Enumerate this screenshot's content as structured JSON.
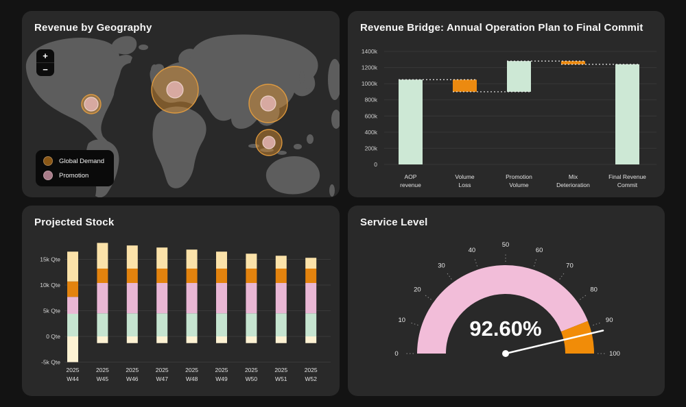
{
  "chart_data": [
    {
      "type": "map",
      "subtype": "bubble-map",
      "title": "Revenue by Geography",
      "zoom_in_label": "+",
      "zoom_out_label": "−",
      "legend": [
        {
          "label": "Global Demand",
          "color": "#8a5716"
        },
        {
          "label": "Promotion",
          "color": "#a87c89"
        }
      ],
      "bubble_colors": {
        "outer_fill": "rgba(224,146,48,0.45)",
        "outer_stroke": "rgba(233,160,62,0.9)",
        "inner_fill": "rgba(218,172,166,0.95)",
        "inner_stroke": "rgba(240,214,206,0.9)"
      },
      "bubbles": [
        {
          "region": "north-america",
          "x": 101,
          "y": 136,
          "outer_r": 14,
          "inner_r": 10
        },
        {
          "region": "europe",
          "x": 223,
          "y": 115,
          "outer_r": 34,
          "inner_r": 12
        },
        {
          "region": "east-asia",
          "x": 359,
          "y": 135,
          "outer_r": 28,
          "inner_r": 11
        },
        {
          "region": "southeast-asia",
          "x": 360,
          "y": 192,
          "outer_r": 19,
          "inner_r": 9
        }
      ]
    },
    {
      "type": "bar",
      "subtype": "waterfall",
      "title": "Revenue Bridge: Annual Operation Plan to Final Commit",
      "ylim": [
        0,
        1400000
      ],
      "yticks": [
        {
          "value": 0,
          "label": "0"
        },
        {
          "value": 200000,
          "label": "200k"
        },
        {
          "value": 400000,
          "label": "400k"
        },
        {
          "value": 600000,
          "label": "600k"
        },
        {
          "value": 800000,
          "label": "800k"
        },
        {
          "value": 1000000,
          "label": "1000k"
        },
        {
          "value": 1200000,
          "label": "1200k"
        },
        {
          "value": 1400000,
          "label": "1400k"
        }
      ],
      "bars": [
        {
          "label": [
            "AOP",
            "revenue"
          ],
          "start": 0,
          "end": 1050000,
          "kind": "total"
        },
        {
          "label": [
            "Volume",
            "Loss"
          ],
          "start": 1050000,
          "end": 900000,
          "kind": "decrease"
        },
        {
          "label": [
            "Promotion",
            "Volume"
          ],
          "start": 900000,
          "end": 1280000,
          "kind": "increase"
        },
        {
          "label": [
            "Mix",
            "Deterioration"
          ],
          "start": 1280000,
          "end": 1240000,
          "kind": "decrease"
        },
        {
          "label": [
            "Final Revenue",
            "Commit"
          ],
          "start": 0,
          "end": 1240000,
          "kind": "total"
        }
      ],
      "colors": {
        "total": "#cde8d5",
        "increase": "#cde8d5",
        "decrease": "#ec8a10"
      },
      "connector_color": "#ededed",
      "grid_color": "#383838"
    },
    {
      "type": "bar",
      "subtype": "stacked",
      "title": "Projected Stock",
      "ylim": [
        -6500,
        19500
      ],
      "yticks": [
        {
          "value": 15000,
          "label": "15k Qte"
        },
        {
          "value": 10000,
          "label": "10k Qte"
        },
        {
          "value": 5000,
          "label": "5k Qte"
        },
        {
          "value": 0,
          "label": "0 Qte"
        },
        {
          "value": -5000,
          "label": "-5k Qte"
        }
      ],
      "segment_colors": {
        "cream": "#fdf2d3",
        "mint": "#c6e4d0",
        "pink": "#e9b7d4",
        "orange": "#e3830e",
        "peach": "#fbe2a9"
      },
      "grid_color": "#3a3a3a",
      "bars": [
        {
          "label": [
            "2025",
            "W44"
          ],
          "segments": [
            {
              "from": -5000,
              "to": 0,
              "color": "cream"
            },
            {
              "from": 0,
              "to": 4400,
              "color": "mint"
            },
            {
              "from": 4400,
              "to": 7700,
              "color": "pink"
            },
            {
              "from": 7700,
              "to": 10700,
              "color": "orange"
            },
            {
              "from": 10700,
              "to": 16500,
              "color": "peach"
            }
          ]
        },
        {
          "label": [
            "2025",
            "W45"
          ],
          "segments": [
            {
              "from": -1300,
              "to": 0,
              "color": "cream"
            },
            {
              "from": 0,
              "to": 4500,
              "color": "mint"
            },
            {
              "from": 4500,
              "to": 10400,
              "color": "pink"
            },
            {
              "from": 10400,
              "to": 13200,
              "color": "orange"
            },
            {
              "from": 13200,
              "to": 18200,
              "color": "peach"
            }
          ]
        },
        {
          "label": [
            "2025",
            "W46"
          ],
          "segments": [
            {
              "from": -1300,
              "to": 0,
              "color": "cream"
            },
            {
              "from": 0,
              "to": 4500,
              "color": "mint"
            },
            {
              "from": 4500,
              "to": 10400,
              "color": "pink"
            },
            {
              "from": 10400,
              "to": 13200,
              "color": "orange"
            },
            {
              "from": 13200,
              "to": 17700,
              "color": "peach"
            }
          ]
        },
        {
          "label": [
            "2025",
            "W47"
          ],
          "segments": [
            {
              "from": -1300,
              "to": 0,
              "color": "cream"
            },
            {
              "from": 0,
              "to": 4500,
              "color": "mint"
            },
            {
              "from": 4500,
              "to": 10400,
              "color": "pink"
            },
            {
              "from": 10400,
              "to": 13200,
              "color": "orange"
            },
            {
              "from": 13200,
              "to": 17300,
              "color": "peach"
            }
          ]
        },
        {
          "label": [
            "2025",
            "W48"
          ],
          "segments": [
            {
              "from": -1300,
              "to": 0,
              "color": "cream"
            },
            {
              "from": 0,
              "to": 4500,
              "color": "mint"
            },
            {
              "from": 4500,
              "to": 10400,
              "color": "pink"
            },
            {
              "from": 10400,
              "to": 13200,
              "color": "orange"
            },
            {
              "from": 13200,
              "to": 16900,
              "color": "peach"
            }
          ]
        },
        {
          "label": [
            "2025",
            "W49"
          ],
          "segments": [
            {
              "from": -1300,
              "to": 0,
              "color": "cream"
            },
            {
              "from": 0,
              "to": 4500,
              "color": "mint"
            },
            {
              "from": 4500,
              "to": 10400,
              "color": "pink"
            },
            {
              "from": 10400,
              "to": 13200,
              "color": "orange"
            },
            {
              "from": 13200,
              "to": 16500,
              "color": "peach"
            }
          ]
        },
        {
          "label": [
            "2025",
            "W50"
          ],
          "segments": [
            {
              "from": -1300,
              "to": 0,
              "color": "cream"
            },
            {
              "from": 0,
              "to": 4500,
              "color": "mint"
            },
            {
              "from": 4500,
              "to": 10400,
              "color": "pink"
            },
            {
              "from": 10400,
              "to": 13200,
              "color": "orange"
            },
            {
              "from": 13200,
              "to": 16100,
              "color": "peach"
            }
          ]
        },
        {
          "label": [
            "2025",
            "W51"
          ],
          "segments": [
            {
              "from": -1300,
              "to": 0,
              "color": "cream"
            },
            {
              "from": 0,
              "to": 4500,
              "color": "mint"
            },
            {
              "from": 4500,
              "to": 10400,
              "color": "pink"
            },
            {
              "from": 10400,
              "to": 13200,
              "color": "orange"
            },
            {
              "from": 13200,
              "to": 15700,
              "color": "peach"
            }
          ]
        },
        {
          "label": [
            "2025",
            "W52"
          ],
          "segments": [
            {
              "from": -1300,
              "to": 0,
              "color": "cream"
            },
            {
              "from": 0,
              "to": 4500,
              "color": "mint"
            },
            {
              "from": 4500,
              "to": 10400,
              "color": "pink"
            },
            {
              "from": 10400,
              "to": 13200,
              "color": "orange"
            },
            {
              "from": 13200,
              "to": 15300,
              "color": "peach"
            }
          ]
        }
      ]
    },
    {
      "type": "gauge",
      "title": "Service Level",
      "min": 0,
      "max": 100,
      "value": 92.6,
      "display_value": "92.60%",
      "tick_step": 10,
      "zones": [
        {
          "from": 0,
          "to": 88,
          "color": "#f2bdd9"
        },
        {
          "from": 88,
          "to": 100,
          "color": "#f18c08"
        }
      ],
      "needle_color": "#ffffff",
      "tick_label_color": "#e8e8e8"
    }
  ]
}
